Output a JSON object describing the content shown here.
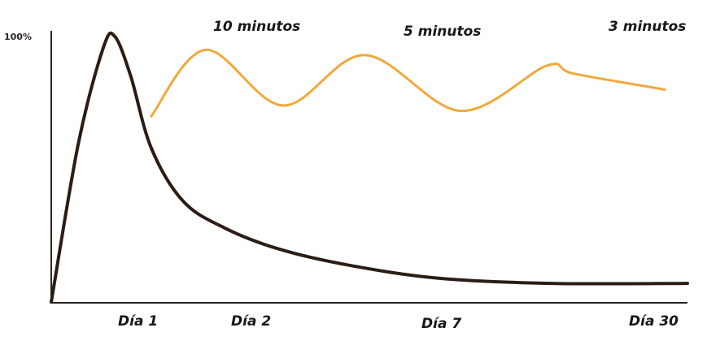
{
  "chart_data": {
    "type": "line",
    "title": "",
    "xlabel": "",
    "ylabel": "",
    "y_tick_label": "100%",
    "x_ticks": [
      {
        "label": "Día 1"
      },
      {
        "label": "Día 2"
      },
      {
        "label": "Día 7"
      },
      {
        "label": "Día 30"
      }
    ],
    "annotations": [
      {
        "text": "10 minutos"
      },
      {
        "text": "5 minutos"
      },
      {
        "text": "3 minutos"
      }
    ],
    "grid": false,
    "legend": "none",
    "series": [
      {
        "color": "#2b1d16",
        "points": [
          [
            0,
            0
          ],
          [
            0.6,
            60
          ],
          [
            1.15,
            96
          ],
          [
            1.4,
            100
          ],
          [
            1.75,
            85
          ],
          [
            2.2,
            58
          ],
          [
            2.9,
            38
          ],
          [
            3.8,
            28
          ],
          [
            5,
            20
          ],
          [
            6.5,
            14
          ],
          [
            8.5,
            9
          ],
          [
            11,
            7
          ],
          [
            14,
            7
          ]
        ]
      },
      {
        "color": "#f0a93c",
        "points": [
          [
            2.2,
            70
          ],
          [
            3.4,
            95
          ],
          [
            5.1,
            74
          ],
          [
            6.9,
            93
          ],
          [
            9.0,
            72
          ],
          [
            10.9,
            89
          ],
          [
            11.5,
            86
          ],
          [
            13.5,
            80
          ]
        ]
      }
    ]
  }
}
